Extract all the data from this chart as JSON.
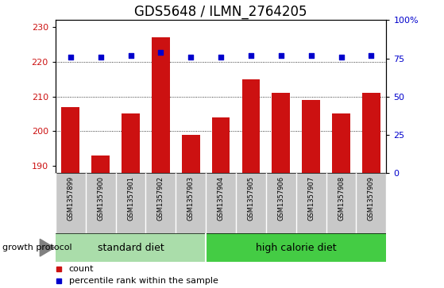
{
  "title": "GDS5648 / ILMN_2764205",
  "samples": [
    "GSM1357899",
    "GSM1357900",
    "GSM1357901",
    "GSM1357902",
    "GSM1357903",
    "GSM1357904",
    "GSM1357905",
    "GSM1357906",
    "GSM1357907",
    "GSM1357908",
    "GSM1357909"
  ],
  "counts": [
    207,
    193,
    205,
    227,
    199,
    204,
    215,
    211,
    209,
    205,
    211
  ],
  "percentile_ranks": [
    76,
    76,
    77,
    79,
    76,
    76,
    77,
    77,
    77,
    76,
    77
  ],
  "ylim_left": [
    188,
    232
  ],
  "ylim_right": [
    0,
    100
  ],
  "yticks_left": [
    190,
    200,
    210,
    220,
    230
  ],
  "yticks_right": [
    0,
    25,
    50,
    75,
    100
  ],
  "bar_color": "#cc1111",
  "dot_color": "#0000cc",
  "bg_color_samples": "#c8c8c8",
  "bg_color_green_light": "#aaddaa",
  "bg_color_green_dark": "#44cc44",
  "standard_diet_label": "standard diet",
  "high_calorie_label": "high calorie diet",
  "group_label": "growth protocol",
  "legend_count_label": "count",
  "legend_percentile_label": "percentile rank within the sample",
  "title_fontsize": 12,
  "tick_fontsize": 8,
  "sample_fontsize": 6,
  "group_fontsize": 9,
  "legend_fontsize": 8,
  "n_standard": 5,
  "n_high": 6,
  "n_total": 11
}
